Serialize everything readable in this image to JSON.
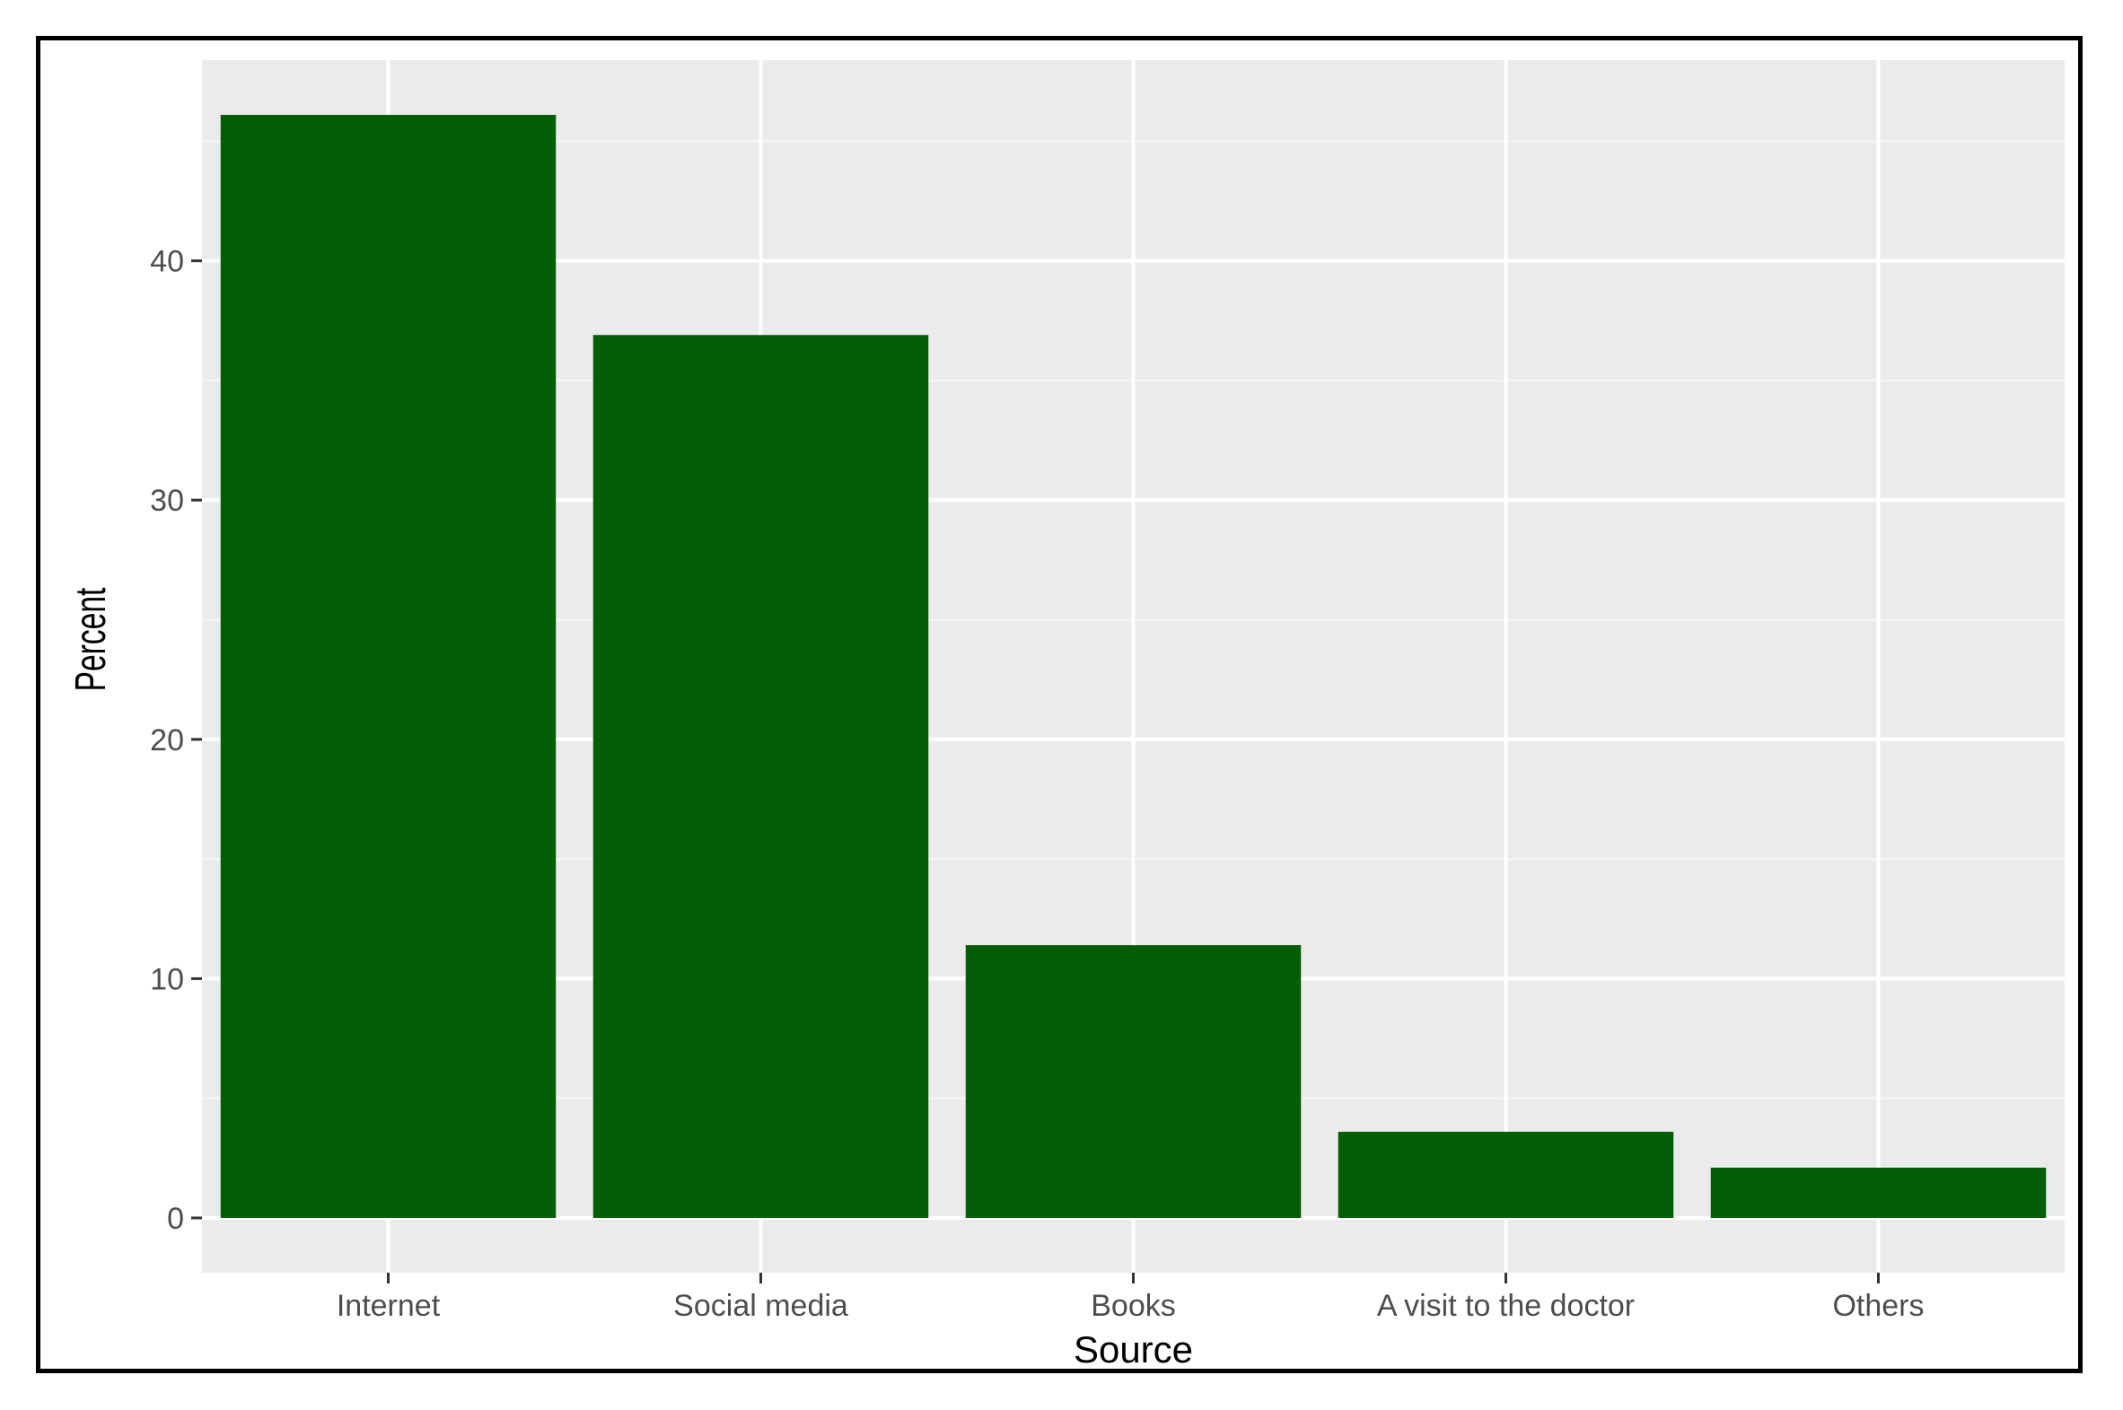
{
  "chart_data": {
    "type": "bar",
    "title": "",
    "xlabel": "Source",
    "ylabel": "Percent",
    "categories": [
      "Internet",
      "Social media",
      "Books",
      "A visit to the doctor",
      "Others"
    ],
    "values": [
      46.1,
      36.9,
      11.4,
      3.6,
      2.1
    ],
    "ylim": [
      0,
      48.5
    ],
    "yticks": [
      0,
      10,
      20,
      30,
      40
    ],
    "ytick_labels": [
      "0",
      "10",
      "20",
      "30",
      "40"
    ],
    "grid": true,
    "legend": "none",
    "colors": {
      "bar": "#055e05",
      "panel": "#ebebeb",
      "grid_major": "#ffffff",
      "grid_minor": "#f5f5f5",
      "tick": "#333333"
    }
  }
}
